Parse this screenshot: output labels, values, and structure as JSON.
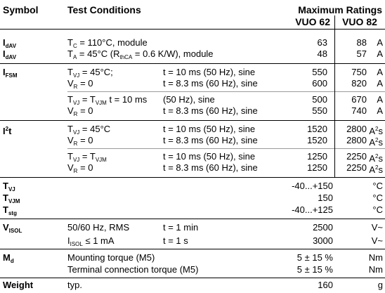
{
  "header": {
    "symbol": "Symbol",
    "conditions": "Test Conditions",
    "max_ratings": "Maximum Ratings",
    "col1": "VUO 62",
    "col2": "VUO 82"
  },
  "rows": {
    "idav1": {
      "sym": "I",
      "sub": "dAV",
      "c1": "T",
      "c1sub": "C",
      "c1rest": " = 110°C, module",
      "v1": "63",
      "v2": "88",
      "unit": "A"
    },
    "idav2": {
      "sym": "I",
      "sub": "dAV",
      "c1": "T",
      "c1sub": "A",
      "c1mid": " = 45°C   (R",
      "c1sub2": "thCA",
      "c1rest": " = 0.6 K/W), module",
      "v1": "48",
      "v2": "57",
      "unit": "A"
    },
    "ifsm1": {
      "sym": "I",
      "sub": "FSM",
      "c1": "T",
      "c1sub": "VJ",
      "c1rest": " = 45°C;",
      "c2": "t = 10 ms  (50 Hz), sine",
      "v1": "550",
      "v2": "750",
      "unit": "A"
    },
    "ifsm2": {
      "c1": "V",
      "c1sub": "R",
      "c1rest": " = 0",
      "c2": "t = 8.3 ms (60 Hz), sine",
      "v1": "600",
      "v2": "820",
      "unit": "A"
    },
    "ifsm3": {
      "c1": "T",
      "c1sub": "VJ",
      "c1mid": " = T",
      "c1sub2": "VJM",
      "c1rest": " t = 10 ms",
      "c2": "(50 Hz), sine",
      "v1": "500",
      "v2": "670",
      "unit": "A"
    },
    "ifsm4": {
      "c1": "V",
      "c1sub": "R",
      "c1rest": " = 0",
      "c2": "t = 8.3 ms (60 Hz), sine",
      "v1": "550",
      "v2": "740",
      "unit": "A"
    },
    "i2t1": {
      "sym": "I",
      "symsup": "2",
      "symrest": "t",
      "c1": "T",
      "c1sub": "VJ",
      "c1rest": " = 45°C",
      "c2": "t = 10 ms  (50 Hz), sine",
      "v1": "1520",
      "v2": "2800",
      "unit": "A",
      "unitsup": "2",
      "unitrest": "s"
    },
    "i2t2": {
      "c1": "V",
      "c1sub": "R",
      "c1rest": " = 0",
      "c2": "t = 8.3 ms (60 Hz), sine",
      "v1": "1520",
      "v2": "2800",
      "unit": "A",
      "unitsup": "2",
      "unitrest": "s"
    },
    "i2t3": {
      "c1": "T",
      "c1sub": "VJ",
      "c1mid": " = T",
      "c1sub2": "VJM",
      "c2": "t = 10 ms  (50 Hz), sine",
      "v1": "1250",
      "v2": "2250",
      "unit": "A",
      "unitsup": "2",
      "unitrest": "s"
    },
    "i2t4": {
      "c1": "V",
      "c1sub": "R",
      "c1rest": " = 0",
      "c2": "t = 8.3 ms (60 Hz), sine",
      "v1": "1250",
      "v2": "2250",
      "unit": "A",
      "unitsup": "2",
      "unitrest": "s"
    },
    "tvj": {
      "sym": "T",
      "sub": "VJ",
      "val": "-40...+150",
      "unit": "°C"
    },
    "tvjm": {
      "sym": "T",
      "sub": "VJM",
      "val": "150",
      "unit": "°C"
    },
    "tstg": {
      "sym": "T",
      "sub": "stg",
      "val": "-40...+125",
      "unit": "°C"
    },
    "visol1": {
      "sym": "V",
      "sub": "ISOL",
      "c1": "50/60 Hz, RMS",
      "c2": "t = 1 min",
      "val": "2500",
      "unit": "V~"
    },
    "visol2": {
      "c1": "I",
      "c1sub": "ISOL",
      "c1rest": " ≤ 1 mA",
      "c2": "t = 1 s",
      "val": "3000",
      "unit": "V~"
    },
    "md1": {
      "sym": "M",
      "sub": "d",
      "c1": "Mounting torque (M5)",
      "val": "5 ± 15 %",
      "unit": "Nm"
    },
    "md2": {
      "c1": "Terminal connection torque (M5)",
      "val": "5 ± 15 %",
      "unit": "Nm"
    },
    "weight": {
      "sym": "Weight",
      "c1": "typ.",
      "val": "160",
      "unit": "g"
    }
  }
}
